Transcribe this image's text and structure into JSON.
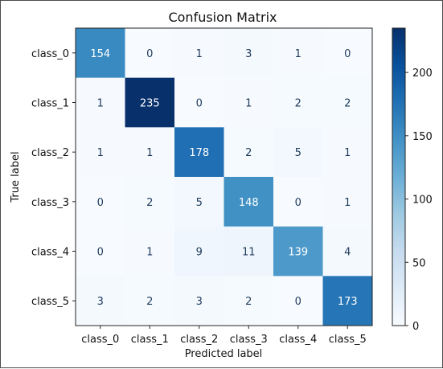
{
  "chart_data": {
    "type": "heatmap",
    "title": "Confusion Matrix",
    "xlabel": "Predicted label",
    "ylabel": "True label",
    "x_categories": [
      "class_0",
      "class_1",
      "class_2",
      "class_3",
      "class_4",
      "class_5"
    ],
    "y_categories": [
      "class_0",
      "class_1",
      "class_2",
      "class_3",
      "class_4",
      "class_5"
    ],
    "values": [
      [
        154,
        0,
        1,
        3,
        1,
        0
      ],
      [
        1,
        235,
        0,
        1,
        2,
        2
      ],
      [
        1,
        1,
        178,
        2,
        5,
        1
      ],
      [
        0,
        2,
        5,
        148,
        0,
        1
      ],
      [
        0,
        1,
        9,
        11,
        139,
        4
      ],
      [
        3,
        2,
        3,
        2,
        0,
        173
      ]
    ],
    "colorbar": {
      "min": 0,
      "max": 235,
      "ticks": [
        0,
        50,
        100,
        150,
        200
      ]
    },
    "grid": false,
    "colormap": [
      "#f7fbff",
      "#deebf7",
      "#c6dbef",
      "#9ecae1",
      "#6baed6",
      "#4292c6",
      "#2171b5",
      "#08519c",
      "#08306b"
    ]
  }
}
